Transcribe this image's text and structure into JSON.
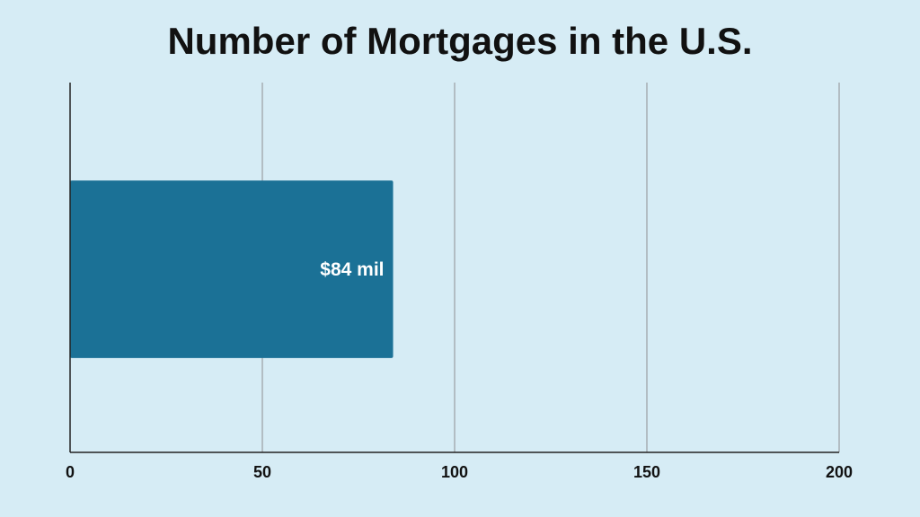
{
  "chart_data": {
    "type": "bar",
    "orientation": "horizontal",
    "title": "Number of Mortgages in the U.S.",
    "xlabel": "",
    "ylabel": "",
    "categories": [
      ""
    ],
    "values": [
      84
    ],
    "data_labels": [
      "$84 mil"
    ],
    "xlim": [
      0,
      200
    ],
    "x_ticks": [
      0,
      50,
      100,
      150,
      200
    ],
    "x_tick_labels": [
      "0",
      "50",
      "100",
      "150",
      "200"
    ],
    "grid": "vertical",
    "legend": "none"
  },
  "colors": {
    "background": "#d6ecf5",
    "bar": "#1b7196",
    "gridline": "#9a9ea2",
    "axis": "#222222",
    "text": "#111111",
    "data_label": "#ffffff"
  }
}
